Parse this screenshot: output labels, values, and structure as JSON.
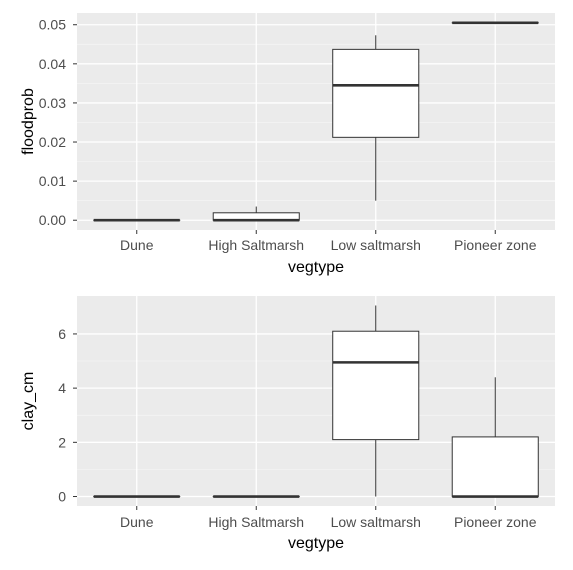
{
  "chart_data": [
    {
      "type": "box",
      "xlabel": "vegtype",
      "ylabel": "floodprob",
      "categories": [
        "Dune",
        "High Saltmarsh",
        "Low saltmarsh",
        "Pioneer zone"
      ],
      "y_ticks": [
        0.0,
        0.01,
        0.02,
        0.03,
        0.04,
        0.05
      ],
      "y_tick_labels": [
        "0.00",
        "0.01",
        "0.02",
        "0.03",
        "0.04",
        "0.05"
      ],
      "ylim": [
        -0.0025,
        0.053
      ],
      "grid": true,
      "boxes": [
        {
          "category": "Dune",
          "min": 0.0,
          "q1": 0.0,
          "median": 0.0,
          "q3": 0.0,
          "max": 0.0
        },
        {
          "category": "High Saltmarsh",
          "min": 0.0,
          "q1": 0.0,
          "median": 0.0,
          "q3": 0.0019,
          "max": 0.0035
        },
        {
          "category": "Low saltmarsh",
          "min": 0.005,
          "q1": 0.0212,
          "median": 0.0345,
          "q3": 0.0437,
          "max": 0.0473
        },
        {
          "category": "Pioneer zone",
          "min": 0.0505,
          "q1": 0.0505,
          "median": 0.0505,
          "q3": 0.0505,
          "max": 0.0505
        }
      ]
    },
    {
      "type": "box",
      "xlabel": "vegtype",
      "ylabel": "clay_cm",
      "categories": [
        "Dune",
        "High Saltmarsh",
        "Low saltmarsh",
        "Pioneer zone"
      ],
      "y_ticks": [
        0,
        2,
        4,
        6
      ],
      "y_tick_labels": [
        "0",
        "2",
        "4",
        "6"
      ],
      "ylim": [
        -0.35,
        7.4
      ],
      "grid": true,
      "boxes": [
        {
          "category": "Dune",
          "min": 0.0,
          "q1": 0.0,
          "median": 0.0,
          "q3": 0.0,
          "max": 0.0
        },
        {
          "category": "High Saltmarsh",
          "min": 0.0,
          "q1": 0.0,
          "median": 0.0,
          "q3": 0.0,
          "max": 0.0
        },
        {
          "category": "Low saltmarsh",
          "min": 0.0,
          "q1": 2.1,
          "median": 4.95,
          "q3": 6.1,
          "max": 7.05
        },
        {
          "category": "Pioneer zone",
          "min": 0.0,
          "q1": 0.0,
          "median": 0.0,
          "q3": 2.2,
          "max": 4.4
        }
      ]
    }
  ]
}
